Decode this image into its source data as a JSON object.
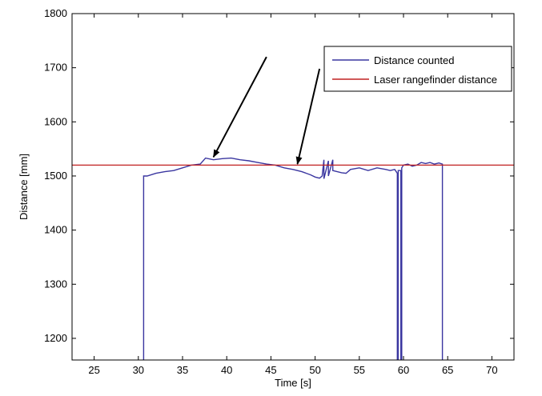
{
  "chart_data": {
    "type": "line",
    "title": "",
    "xlabel": "Time [s]",
    "ylabel": "Distance [mm]",
    "xlim": [
      22.5,
      72.5
    ],
    "ylim": [
      1160,
      1800
    ],
    "xticks": [
      25,
      30,
      35,
      40,
      45,
      50,
      55,
      60,
      65,
      70
    ],
    "yticks": [
      1200,
      1300,
      1400,
      1500,
      1600,
      1700,
      1800
    ],
    "grid": false,
    "legend_position": "top-right",
    "series": [
      {
        "name": "Distance counted",
        "color": "#3a36a0",
        "x": [
          30.6,
          30.6,
          31.0,
          32.0,
          33.0,
          34.0,
          35.0,
          36.0,
          37.0,
          37.6,
          38.5,
          39.5,
          40.5,
          41.5,
          42.5,
          43.5,
          44.5,
          45.5,
          46.5,
          47.5,
          48.5,
          49.0,
          49.5,
          50.0,
          50.5,
          50.8,
          51.0,
          51.0,
          51.5,
          51.5,
          52.0,
          52.0,
          52.5,
          53.0,
          53.5,
          54.0,
          55.0,
          56.0,
          57.0,
          58.0,
          58.5,
          59.0,
          59.3,
          59.3,
          59.4,
          59.4,
          59.7,
          59.7,
          59.8,
          59.8,
          60.0,
          60.5,
          61.0,
          61.5,
          62.0,
          62.5,
          63.0,
          63.5,
          64.0,
          64.4,
          64.4
        ],
        "y": [
          1160,
          1500,
          1500,
          1505,
          1508,
          1510,
          1515,
          1520,
          1522,
          1533,
          1530,
          1532,
          1533,
          1530,
          1528,
          1525,
          1522,
          1520,
          1515,
          1512,
          1508,
          1505,
          1502,
          1498,
          1496,
          1500,
          1530,
          1495,
          1528,
          1500,
          1530,
          1510,
          1508,
          1506,
          1505,
          1512,
          1515,
          1510,
          1515,
          1512,
          1510,
          1512,
          1505,
          1160,
          1160,
          1510,
          1510,
          1160,
          1160,
          1515,
          1520,
          1522,
          1518,
          1520,
          1525,
          1523,
          1525,
          1522,
          1524,
          1522,
          1160
        ]
      },
      {
        "name": "Laser rangefinder distance",
        "color": "#c02020",
        "x": [
          22.5,
          72.5
        ],
        "y": [
          1520,
          1520
        ]
      }
    ],
    "annotations": [
      {
        "type": "arrow",
        "from": [
          44.5,
          1720
        ],
        "to": [
          38.5,
          1535
        ]
      },
      {
        "type": "arrow",
        "from": [
          50.5,
          1698
        ],
        "to": [
          48.0,
          1522
        ]
      }
    ]
  }
}
